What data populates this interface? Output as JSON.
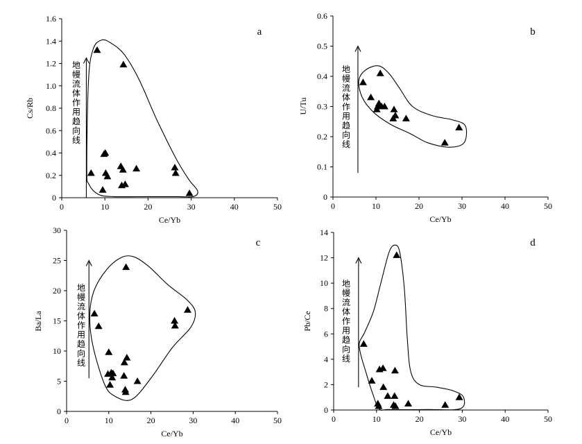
{
  "colors": {
    "ink": "#000000",
    "background": "#ffffff"
  },
  "chart_data": [
    {
      "panel": "a",
      "type": "scatter",
      "xlabel": "Ce/Yb",
      "ylabel": "Cs/Rb",
      "xlim": [
        0,
        50
      ],
      "ylim": [
        0,
        1.6
      ],
      "x_ticks": [
        "0",
        "10",
        "20",
        "30",
        "40",
        "50"
      ],
      "y_ticks": [
        "0",
        "0.2",
        "0.4",
        "0.6",
        "0.8",
        "1.0",
        "1.2",
        "1.4",
        "1.6"
      ],
      "annotation": "地幔流体作用趋向线",
      "marker": "filled-triangle",
      "points": [
        [
          6.8,
          0.22
        ],
        [
          8.2,
          1.32
        ],
        [
          9.5,
          0.07
        ],
        [
          9.8,
          0.39
        ],
        [
          10.1,
          0.4
        ],
        [
          10.2,
          0.22
        ],
        [
          10.6,
          0.19
        ],
        [
          13.7,
          0.28
        ],
        [
          13.9,
          0.11
        ],
        [
          14.2,
          0.25
        ],
        [
          14.3,
          1.19
        ],
        [
          14.7,
          0.12
        ],
        [
          17.3,
          0.26
        ],
        [
          26.2,
          0.27
        ],
        [
          26.4,
          0.22
        ],
        [
          29.6,
          0.04
        ]
      ],
      "envelope": [
        [
          5.8,
          0.26
        ],
        [
          6.2,
          1.05
        ],
        [
          7.3,
          1.33
        ],
        [
          9.3,
          1.41
        ],
        [
          11.5,
          1.38
        ],
        [
          14.5,
          1.28
        ],
        [
          18,
          1.05
        ],
        [
          22,
          0.7
        ],
        [
          26.5,
          0.35
        ],
        [
          29.5,
          0.16
        ],
        [
          31.5,
          0.06
        ],
        [
          30.5,
          0.01
        ],
        [
          27,
          0.01
        ],
        [
          20,
          0.01
        ],
        [
          12,
          0.01
        ],
        [
          8.5,
          0.03
        ],
        [
          6.3,
          0.12
        ]
      ],
      "arrow": {
        "x": 5.7,
        "y_from": 0.0,
        "y_to": 1.25
      }
    },
    {
      "panel": "b",
      "type": "scatter",
      "xlabel": "Ce/Yb",
      "ylabel": "U/Tu",
      "xlim": [
        0,
        50
      ],
      "ylim": [
        0,
        0.6
      ],
      "x_ticks": [
        "0",
        "10",
        "20",
        "30",
        "40",
        "50"
      ],
      "y_ticks": [
        "0",
        "0.1",
        "0.2",
        "0.3",
        "0.4",
        "0.5",
        "0.6"
      ],
      "annotation": "地幔流体作用趋向线",
      "marker": "filled-triangle",
      "points": [
        [
          7,
          0.38
        ],
        [
          8.8,
          0.33
        ],
        [
          10.2,
          0.29
        ],
        [
          10.4,
          0.3
        ],
        [
          10.7,
          0.31
        ],
        [
          11,
          0.41
        ],
        [
          11.3,
          0.3
        ],
        [
          12,
          0.3
        ],
        [
          14,
          0.26
        ],
        [
          14.2,
          0.29
        ],
        [
          14.5,
          0.27
        ],
        [
          17,
          0.26
        ],
        [
          26,
          0.18
        ],
        [
          29.3,
          0.23
        ]
      ],
      "envelope": [
        [
          6,
          0.385
        ],
        [
          7.5,
          0.42
        ],
        [
          10.5,
          0.435
        ],
        [
          13,
          0.41
        ],
        [
          15.5,
          0.36
        ],
        [
          18.5,
          0.3
        ],
        [
          23,
          0.27
        ],
        [
          28,
          0.255
        ],
        [
          30.8,
          0.235
        ],
        [
          30.5,
          0.18
        ],
        [
          27,
          0.165
        ],
        [
          22,
          0.18
        ],
        [
          18,
          0.21
        ],
        [
          13.5,
          0.24
        ],
        [
          9.5,
          0.28
        ],
        [
          6.8,
          0.33
        ]
      ],
      "arrow": {
        "x": 5.8,
        "y_from": 0.08,
        "y_to": 0.5
      }
    },
    {
      "panel": "c",
      "type": "scatter",
      "xlabel": "Ce/Yb",
      "ylabel": "Ba/La",
      "xlim": [
        0,
        50
      ],
      "ylim": [
        0,
        30
      ],
      "x_ticks": [
        "0",
        "10",
        "20",
        "30",
        "40",
        "50"
      ],
      "y_ticks": [
        "0",
        "5",
        "10",
        "15",
        "20",
        "25",
        "30"
      ],
      "annotation": "地幔流体作用趋向线",
      "marker": "filled-triangle",
      "points": [
        [
          6.6,
          16.2
        ],
        [
          7.6,
          14.1
        ],
        [
          9.8,
          6.2
        ],
        [
          10,
          9.8
        ],
        [
          10.3,
          4.4
        ],
        [
          10.6,
          6.4
        ],
        [
          10.8,
          5.6
        ],
        [
          11,
          6.3
        ],
        [
          13.6,
          5.9
        ],
        [
          13.7,
          8.1
        ],
        [
          13.9,
          3.6
        ],
        [
          14,
          3.2
        ],
        [
          14.1,
          23.9
        ],
        [
          14.3,
          8.9
        ],
        [
          16.8,
          5
        ],
        [
          25.6,
          15
        ],
        [
          25.7,
          14.2
        ],
        [
          28.7,
          16.8
        ]
      ],
      "envelope": [
        [
          5.5,
          16
        ],
        [
          6.5,
          20
        ],
        [
          9.5,
          23.5
        ],
        [
          13,
          25.5
        ],
        [
          16,
          25.6
        ],
        [
          19.5,
          24
        ],
        [
          24,
          21
        ],
        [
          28.5,
          18.5
        ],
        [
          30.5,
          16.5
        ],
        [
          29.5,
          14
        ],
        [
          25,
          10.5
        ],
        [
          20,
          5.5
        ],
        [
          15.5,
          2
        ],
        [
          11.5,
          2.5
        ],
        [
          9,
          4.5
        ],
        [
          6.2,
          11
        ]
      ],
      "arrow": {
        "x": 5.3,
        "y_from": 5.5,
        "y_to": 25
      }
    },
    {
      "panel": "d",
      "type": "scatter",
      "xlabel": "Ce/Yb",
      "ylabel": "Pb/Ce",
      "xlim": [
        0,
        50
      ],
      "ylim": [
        0,
        14
      ],
      "x_ticks": [
        "0",
        "10",
        "20",
        "30",
        "40",
        "50"
      ],
      "y_ticks": [
        "0",
        "2",
        "4",
        "6",
        "8",
        "10",
        "12",
        "14"
      ],
      "annotation": "地幔流体作用趋向线",
      "marker": "filled-triangle",
      "points": [
        [
          7,
          5.2
        ],
        [
          8.9,
          2.3
        ],
        [
          10.3,
          0.5
        ],
        [
          10.5,
          0.3
        ],
        [
          10.7,
          3.2
        ],
        [
          11.5,
          3.3
        ],
        [
          11.6,
          1.8
        ],
        [
          12.6,
          1.1
        ],
        [
          14,
          0.4
        ],
        [
          14.2,
          1.1
        ],
        [
          14.3,
          3.1
        ],
        [
          14.4,
          0.3
        ],
        [
          14.7,
          12.2
        ],
        [
          17.4,
          0.5
        ],
        [
          26,
          0.4
        ],
        [
          29.3,
          1
        ]
      ],
      "envelope": [
        [
          6,
          5.3
        ],
        [
          7.2,
          6.1
        ],
        [
          9.3,
          7.8
        ],
        [
          11,
          10
        ],
        [
          13,
          12.5
        ],
        [
          14.5,
          13
        ],
        [
          15.5,
          12.3
        ],
        [
          16.5,
          9.5
        ],
        [
          17.2,
          5.5
        ],
        [
          18,
          3
        ],
        [
          20,
          2
        ],
        [
          24,
          1.8
        ],
        [
          28,
          1.5
        ],
        [
          30.3,
          1
        ],
        [
          29.5,
          0.1
        ],
        [
          22,
          0.04
        ],
        [
          13,
          0.04
        ],
        [
          10.6,
          0.1
        ],
        [
          9,
          1.4
        ],
        [
          7.5,
          3
        ],
        [
          6.3,
          4.4
        ]
      ],
      "arrow": {
        "x": 5.8,
        "y_from": 1.8,
        "y_to": 12
      }
    }
  ]
}
